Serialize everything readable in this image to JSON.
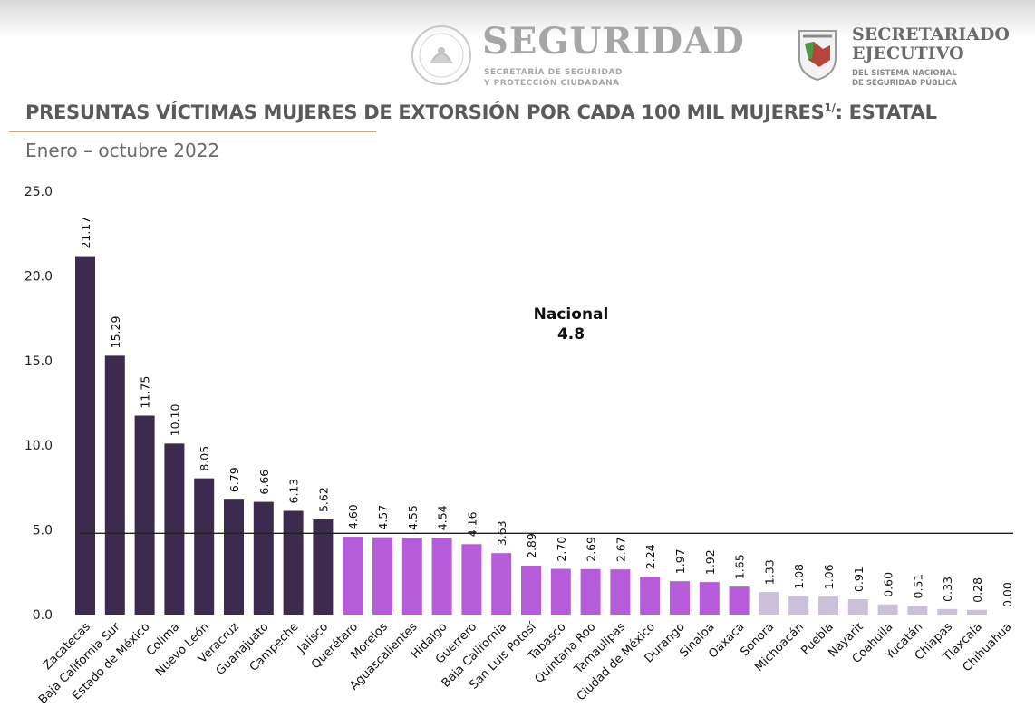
{
  "header": {
    "seguridad": {
      "name": "SEGURIDAD",
      "sub_line1": "SECRETARÍA DE SEGURIDAD",
      "sub_line2": "Y PROTECCIÓN CIUDADANA"
    },
    "secretariado": {
      "line1": "SECRETARIADO",
      "line2": "EJECUTIVO",
      "sub_line1": "DEL SISTEMA NACIONAL",
      "sub_line2": "DE SEGURIDAD PÚBLICA"
    }
  },
  "title": "PRESUNTAS VÍCTIMAS MUJERES DE EXTORSIÓN POR CADA 100 MIL MUJERES",
  "title_superscript": "1/",
  "title_suffix": ": ESTATAL",
  "subtitle": "Enero – octubre 2022",
  "nacional": {
    "label": "Nacional",
    "value": "4.8"
  },
  "colors": {
    "group1": "#3c2b4e",
    "group2": "#b65bd9",
    "group3": "#cbbfdc",
    "reference_line": "#222222"
  },
  "chart_data": {
    "type": "bar",
    "categories": [
      "Zacatecas",
      "Baja California Sur",
      "Estado de México",
      "Colima",
      "Nuevo León",
      "Veracruz",
      "Guanajuato",
      "Campeche",
      "Jalisco",
      "Querétaro",
      "Morelos",
      "Aguascalientes",
      "Hidalgo",
      "Guerrero",
      "Baja California",
      "San Luis Potosí",
      "Tabasco",
      "Quintana Roo",
      "Tamaulipas",
      "Ciudad de México",
      "Durango",
      "Sinaloa",
      "Oaxaca",
      "Sonora",
      "Michoacán",
      "Puebla",
      "Nayarit",
      "Coahuila",
      "Yucatán",
      "Chiapas",
      "Tlaxcala",
      "Chihuahua"
    ],
    "values": [
      21.17,
      15.29,
      11.75,
      10.1,
      8.05,
      6.79,
      6.66,
      6.13,
      5.62,
      4.6,
      4.57,
      4.55,
      4.54,
      4.16,
      3.63,
      2.89,
      2.7,
      2.69,
      2.67,
      2.24,
      1.97,
      1.92,
      1.65,
      1.33,
      1.08,
      1.06,
      0.91,
      0.6,
      0.51,
      0.33,
      0.28,
      0.0
    ],
    "labels": [
      "21.17",
      "15.29",
      "11.75",
      "10.10",
      "8.05",
      "6.79",
      "6.66",
      "6.13",
      "5.62",
      "4.60",
      "4.57",
      "4.55",
      "4.54",
      "4.16",
      "3.63",
      "2.89",
      "2.70",
      "2.69",
      "2.67",
      "2.24",
      "1.97",
      "1.92",
      "1.65",
      "1.33",
      "1.08",
      "1.06",
      "0.91",
      "0.60",
      "0.51",
      "0.33",
      "0.28",
      "0.00"
    ],
    "color_groups": [
      1,
      1,
      1,
      1,
      1,
      1,
      1,
      1,
      1,
      2,
      2,
      2,
      2,
      2,
      2,
      2,
      2,
      2,
      2,
      2,
      2,
      2,
      2,
      3,
      3,
      3,
      3,
      3,
      3,
      3,
      3,
      3
    ],
    "reference_line": 4.8,
    "ylim": [
      0,
      25
    ],
    "yticks": [
      "0.0",
      "5.0",
      "10.0",
      "15.0",
      "20.0",
      "25.0"
    ],
    "xlabel": "",
    "ylabel": "",
    "grid": false
  }
}
